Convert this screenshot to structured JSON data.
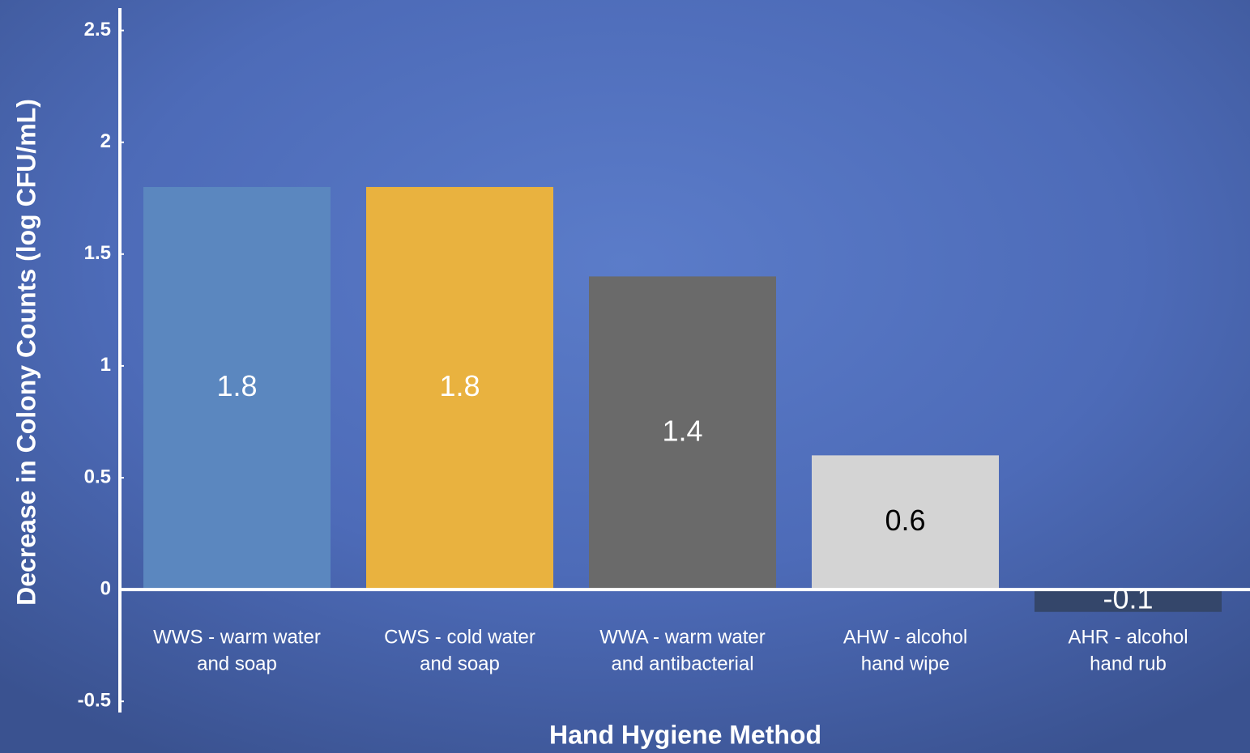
{
  "chart_data": {
    "type": "bar",
    "x_label": "Hand Hygiene Method",
    "y_label": "Decrease in Colony Counts (log CFU/mL)",
    "categories": [
      [
        "WWS - warm water",
        "and soap"
      ],
      [
        "CWS - cold water",
        "and soap"
      ],
      [
        "WWA - warm water",
        "and antibacterial"
      ],
      [
        "AHW - alcohol",
        "hand wipe"
      ],
      [
        "AHR - alcohol",
        "hand rub"
      ]
    ],
    "values": [
      1.8,
      1.8,
      1.4,
      0.6,
      -0.1
    ],
    "colors": [
      "#5b87bf",
      "#e9b23f",
      "#6a6a6a",
      "#d4d4d4",
      "#34466a"
    ],
    "label_colors": [
      "#ffffff",
      "#ffffff",
      "#ffffff",
      "#000000",
      "#ffffff"
    ],
    "ylim": [
      -0.55,
      2.6
    ],
    "yticks": [
      -0.5,
      0,
      0.5,
      1,
      1.5,
      2,
      2.5
    ]
  }
}
